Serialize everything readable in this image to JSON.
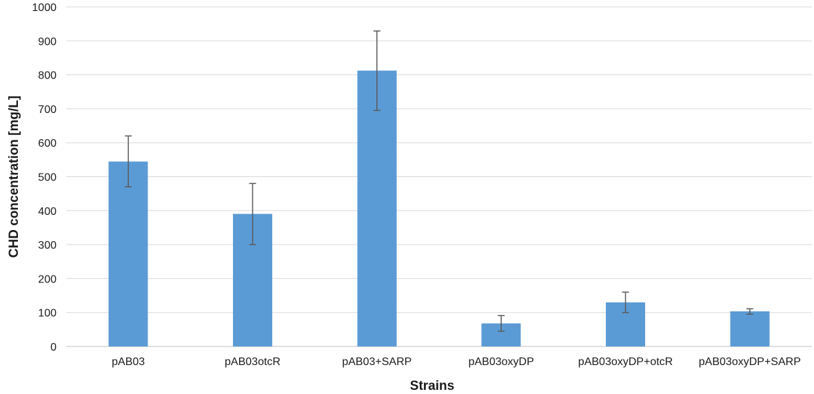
{
  "chart_data": {
    "type": "bar",
    "title": "",
    "xlabel": "Strains",
    "ylabel": "CHD concentration [mg/L]",
    "categories": [
      "pAB03",
      "pAB03otcR",
      "pAB03+SARP",
      "pAB03oxyDP",
      "pAB03oxyDP+otcR",
      "pAB03oxyDP+SARP"
    ],
    "values": [
      545,
      390,
      812,
      68,
      130,
      103
    ],
    "errors": [
      75,
      90,
      117,
      23,
      30,
      8
    ],
    "ylim": [
      0,
      1000
    ],
    "yticks": [
      0,
      100,
      200,
      300,
      400,
      500,
      600,
      700,
      800,
      900,
      1000
    ],
    "grid": true,
    "legend": "none",
    "colors": {
      "bar": "#5b9bd5",
      "error_bar": "#595959",
      "grid": "#d9d9d9"
    }
  }
}
